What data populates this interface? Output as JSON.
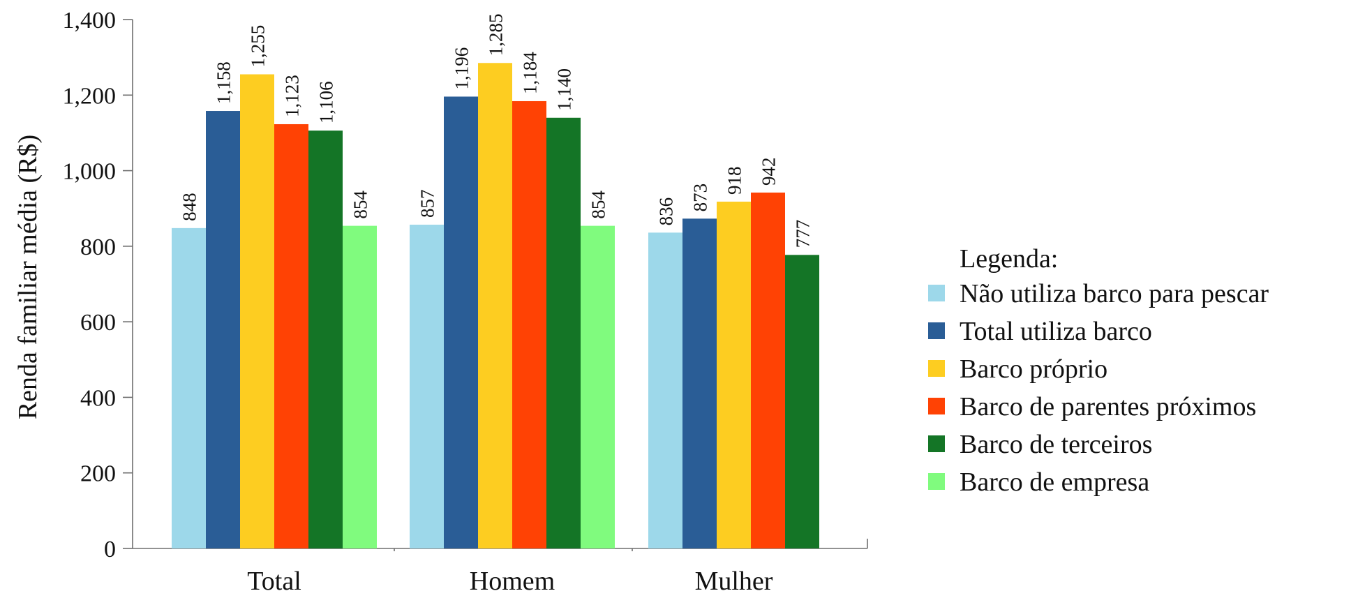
{
  "chart_data": {
    "type": "bar",
    "title": "",
    "xlabel": "",
    "ylabel": "Renda familiar média (R$)",
    "ylim": [
      0,
      1400
    ],
    "yticks": [
      0,
      200,
      400,
      600,
      800,
      1000,
      1200,
      1400
    ],
    "ytick_labels": [
      "0",
      "200",
      "400",
      "600",
      "800",
      "1,000",
      "1,200",
      "1,400"
    ],
    "categories": [
      "Total",
      "Homem",
      "Mulher"
    ],
    "legend_title": "Legenda:",
    "legend_position": "right",
    "grid": false,
    "series": [
      {
        "name": "Não utiliza barco para pescar",
        "color": "#9dd8ea",
        "values": [
          848,
          857,
          836
        ],
        "labels": [
          "848",
          "857",
          "836"
        ]
      },
      {
        "name": "Total utiliza barco",
        "color": "#2a5d96",
        "values": [
          1158,
          1196,
          873
        ],
        "labels": [
          "1,158",
          "1,196",
          "873"
        ]
      },
      {
        "name": "Barco próprio",
        "color": "#fdcd21",
        "values": [
          1255,
          1285,
          918
        ],
        "labels": [
          "1,255",
          "1,285",
          "918"
        ]
      },
      {
        "name": "Barco de parentes próximos",
        "color": "#ff4204",
        "values": [
          1123,
          1184,
          942
        ],
        "labels": [
          "1,123",
          "1,184",
          "942"
        ]
      },
      {
        "name": "Barco de terceiros",
        "color": "#147526",
        "values": [
          1106,
          1140,
          777
        ],
        "labels": [
          "1,106",
          "1,140",
          "777"
        ]
      },
      {
        "name": "Barco de empresa",
        "color": "#80fb7e",
        "values": [
          854,
          854,
          null
        ],
        "labels": [
          "854",
          "854",
          ""
        ]
      }
    ]
  }
}
